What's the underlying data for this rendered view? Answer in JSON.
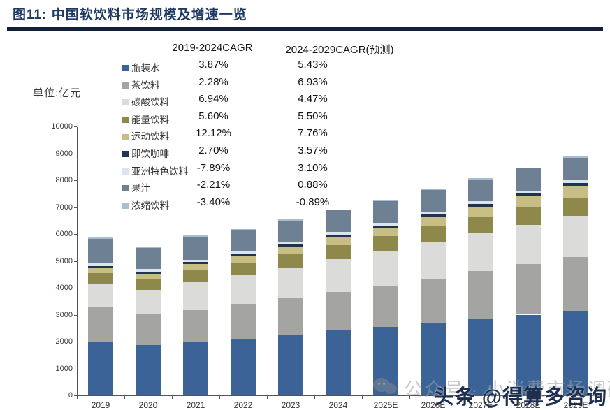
{
  "header": {
    "title": "图11:  中国软饮料市场规模及增速一览"
  },
  "unit_label": "单位:亿元",
  "cagr_table": {
    "col1_header": "2019-2024CAGR",
    "col2_header": "2024-2029CAGR(预测)",
    "rows": [
      {
        "label": "瓶装水",
        "color": "#3b6398",
        "cagr_2019_2024": "3.87%",
        "cagr_2024_2029": "5.43%"
      },
      {
        "label": "茶饮料",
        "color": "#a4a4a2",
        "cagr_2019_2024": "2.28%",
        "cagr_2024_2029": "6.93%"
      },
      {
        "label": "碳酸饮料",
        "color": "#dbdbd9",
        "cagr_2019_2024": "6.94%",
        "cagr_2024_2029": "4.47%"
      },
      {
        "label": "能量饮料",
        "color": "#8e894a",
        "cagr_2019_2024": "5.60%",
        "cagr_2024_2029": "5.50%"
      },
      {
        "label": "运动饮料",
        "color": "#c8bd85",
        "cagr_2019_2024": "12.12%",
        "cagr_2024_2029": "7.76%"
      },
      {
        "label": "即饮咖啡",
        "color": "#1e3450",
        "cagr_2019_2024": "2.70%",
        "cagr_2024_2029": "3.57%"
      },
      {
        "label": "亚洲特色饮料",
        "color": "#dde4ec",
        "cagr_2019_2024": "-7.89%",
        "cagr_2024_2029": "3.10%"
      },
      {
        "label": "果汁",
        "color": "#6e8093",
        "cagr_2019_2024": "-2.21%",
        "cagr_2024_2029": "0.88%"
      },
      {
        "label": "浓缩饮料",
        "color": "#a8bdd4",
        "cagr_2019_2024": "-3.40%",
        "cagr_2024_2029": "-0.89%"
      }
    ]
  },
  "chart_data": {
    "type": "bar",
    "stacked": true,
    "title": "中国软饮料市场规模及增速一览",
    "ylabel": "单位:亿元",
    "ylim": [
      0,
      10000
    ],
    "ytick_interval": 1000,
    "grid": false,
    "legend_position": "upper-left",
    "categories": [
      "2019",
      "2020",
      "2021",
      "2022",
      "2023",
      "2024",
      "2025E",
      "2026E",
      "2027E",
      "2028E",
      "2029E"
    ],
    "series": [
      {
        "name": "瓶装水",
        "color": "#3b6398",
        "values": [
          1990,
          1870,
          2010,
          2110,
          2240,
          2410,
          2540,
          2700,
          2860,
          3000,
          3140
        ]
      },
      {
        "name": "茶饮料",
        "color": "#a4a4a2",
        "values": [
          1280,
          1180,
          1170,
          1290,
          1380,
          1430,
          1530,
          1650,
          1770,
          1880,
          2000
        ]
      },
      {
        "name": "碳酸饮料",
        "color": "#dbdbd9",
        "values": [
          880,
          870,
          1020,
          1060,
          1140,
          1230,
          1285,
          1340,
          1400,
          1465,
          1530
        ]
      },
      {
        "name": "能量饮料",
        "color": "#8e894a",
        "values": [
          400,
          430,
          465,
          480,
          500,
          525,
          555,
          585,
          615,
          650,
          685
        ]
      },
      {
        "name": "运动饮料",
        "color": "#c8bd85",
        "values": [
          170,
          180,
          210,
          230,
          260,
          300,
          325,
          350,
          375,
          405,
          435
        ]
      },
      {
        "name": "即饮咖啡",
        "color": "#1e3450",
        "values": [
          75,
          70,
          75,
          78,
          82,
          86,
          89,
          92,
          95,
          99,
          102
        ]
      },
      {
        "name": "亚洲特色饮料",
        "color": "#dde4ec",
        "values": [
          130,
          105,
          100,
          95,
          90,
          86,
          89,
          92,
          94,
          97,
          100
        ]
      },
      {
        "name": "果汁",
        "color": "#6e8093",
        "values": [
          900,
          770,
          840,
          790,
          800,
          805,
          810,
          820,
          825,
          835,
          840
        ]
      },
      {
        "name": "浓缩饮料",
        "color": "#a8bdd4",
        "values": [
          55,
          50,
          48,
          47,
          46,
          46,
          46,
          45,
          45,
          44,
          44
        ]
      }
    ],
    "totals_approx": [
      5880,
      5525,
      5940,
      6180,
      6540,
      6920,
      7270,
      7670,
      8080,
      8480,
      8880
    ]
  },
  "watermarks": {
    "wechat_text": "公众号 · 小消费市场调研",
    "toutiao_text": "头条 @得算多咨询"
  }
}
